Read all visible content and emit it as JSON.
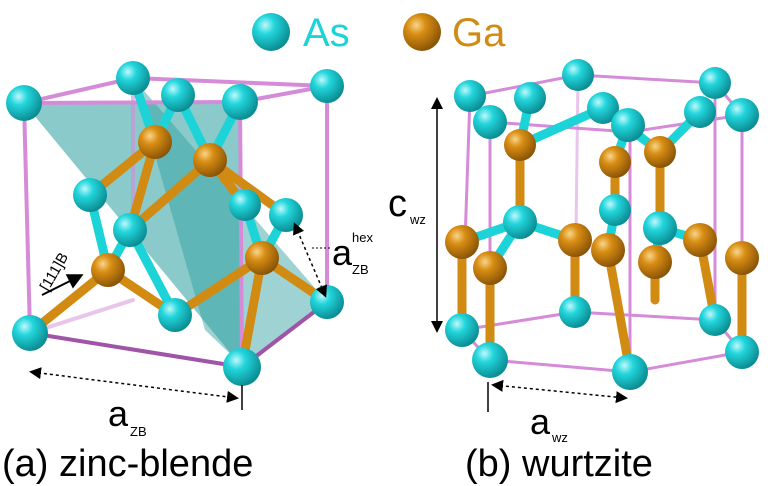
{
  "legend": {
    "items": [
      {
        "label": "As",
        "color": "#1cd3d8"
      },
      {
        "label": "Ga",
        "color": "#d18a12"
      }
    ]
  },
  "colors": {
    "as_atom": "#1cd3d8",
    "ga_atom": "#d18a12",
    "bond_as": "#1cd3d8",
    "bond_ga": "#d18a12",
    "cell_edge": "#d58bd8",
    "cell_edge_dark": "#a054a8",
    "plane": "#2a9e9e",
    "label_text": "#000000"
  },
  "panels": {
    "zb": {
      "caption": "(a) zinc-blende",
      "lattice_label_main": "a",
      "lattice_label_sub": "ZB",
      "hex_label_main": "a",
      "hex_label_sub": "ZB",
      "hex_label_sup": "hex",
      "direction_label": "[111]B"
    },
    "wz": {
      "caption": "(b) wurtzite",
      "c_label_main": "c",
      "c_label_sub": "wz",
      "a_label_main": "a",
      "a_label_sub": "wz"
    }
  }
}
